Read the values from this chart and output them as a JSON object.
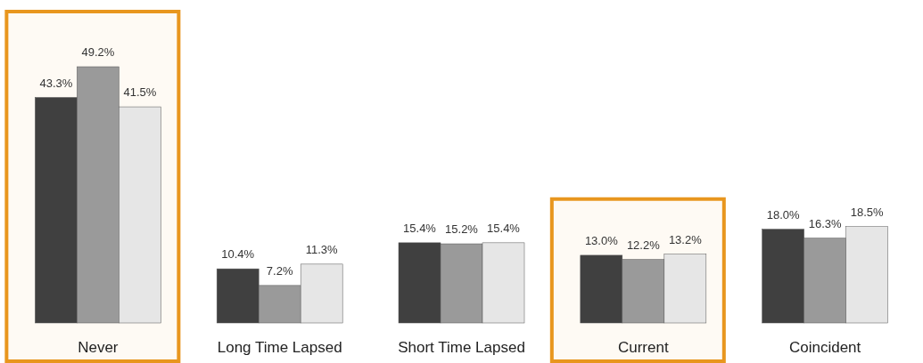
{
  "chart_data": {
    "type": "bar",
    "categories": [
      "Never",
      "Long Time Lapsed",
      "Short Time Lapsed",
      "Current",
      "Coincident"
    ],
    "series": [
      {
        "color": "#404040",
        "values": [
          43.3,
          10.4,
          15.4,
          13.0,
          18.0
        ],
        "value_labels": [
          "43.3%",
          "10.4%",
          "15.4%",
          "13.0%",
          "18.0%"
        ]
      },
      {
        "color": "#9a9a9a",
        "values": [
          49.2,
          7.2,
          15.2,
          12.2,
          16.3
        ],
        "value_labels": [
          "49.2%",
          "7.2%",
          "15.2%",
          "12.2%",
          "16.3%"
        ]
      },
      {
        "color": "#e6e6e6",
        "values": [
          41.5,
          11.3,
          15.4,
          13.2,
          18.5
        ],
        "value_labels": [
          "41.5%",
          "11.3%",
          "15.4%",
          "13.2%",
          "18.5%"
        ]
      }
    ],
    "bands": [
      {
        "axis": "x",
        "from": "Never",
        "to": "Never",
        "color": "#e8961e"
      },
      {
        "axis": "x",
        "from": "Current",
        "to": "Current",
        "color": "#e8961e"
      }
    ]
  }
}
